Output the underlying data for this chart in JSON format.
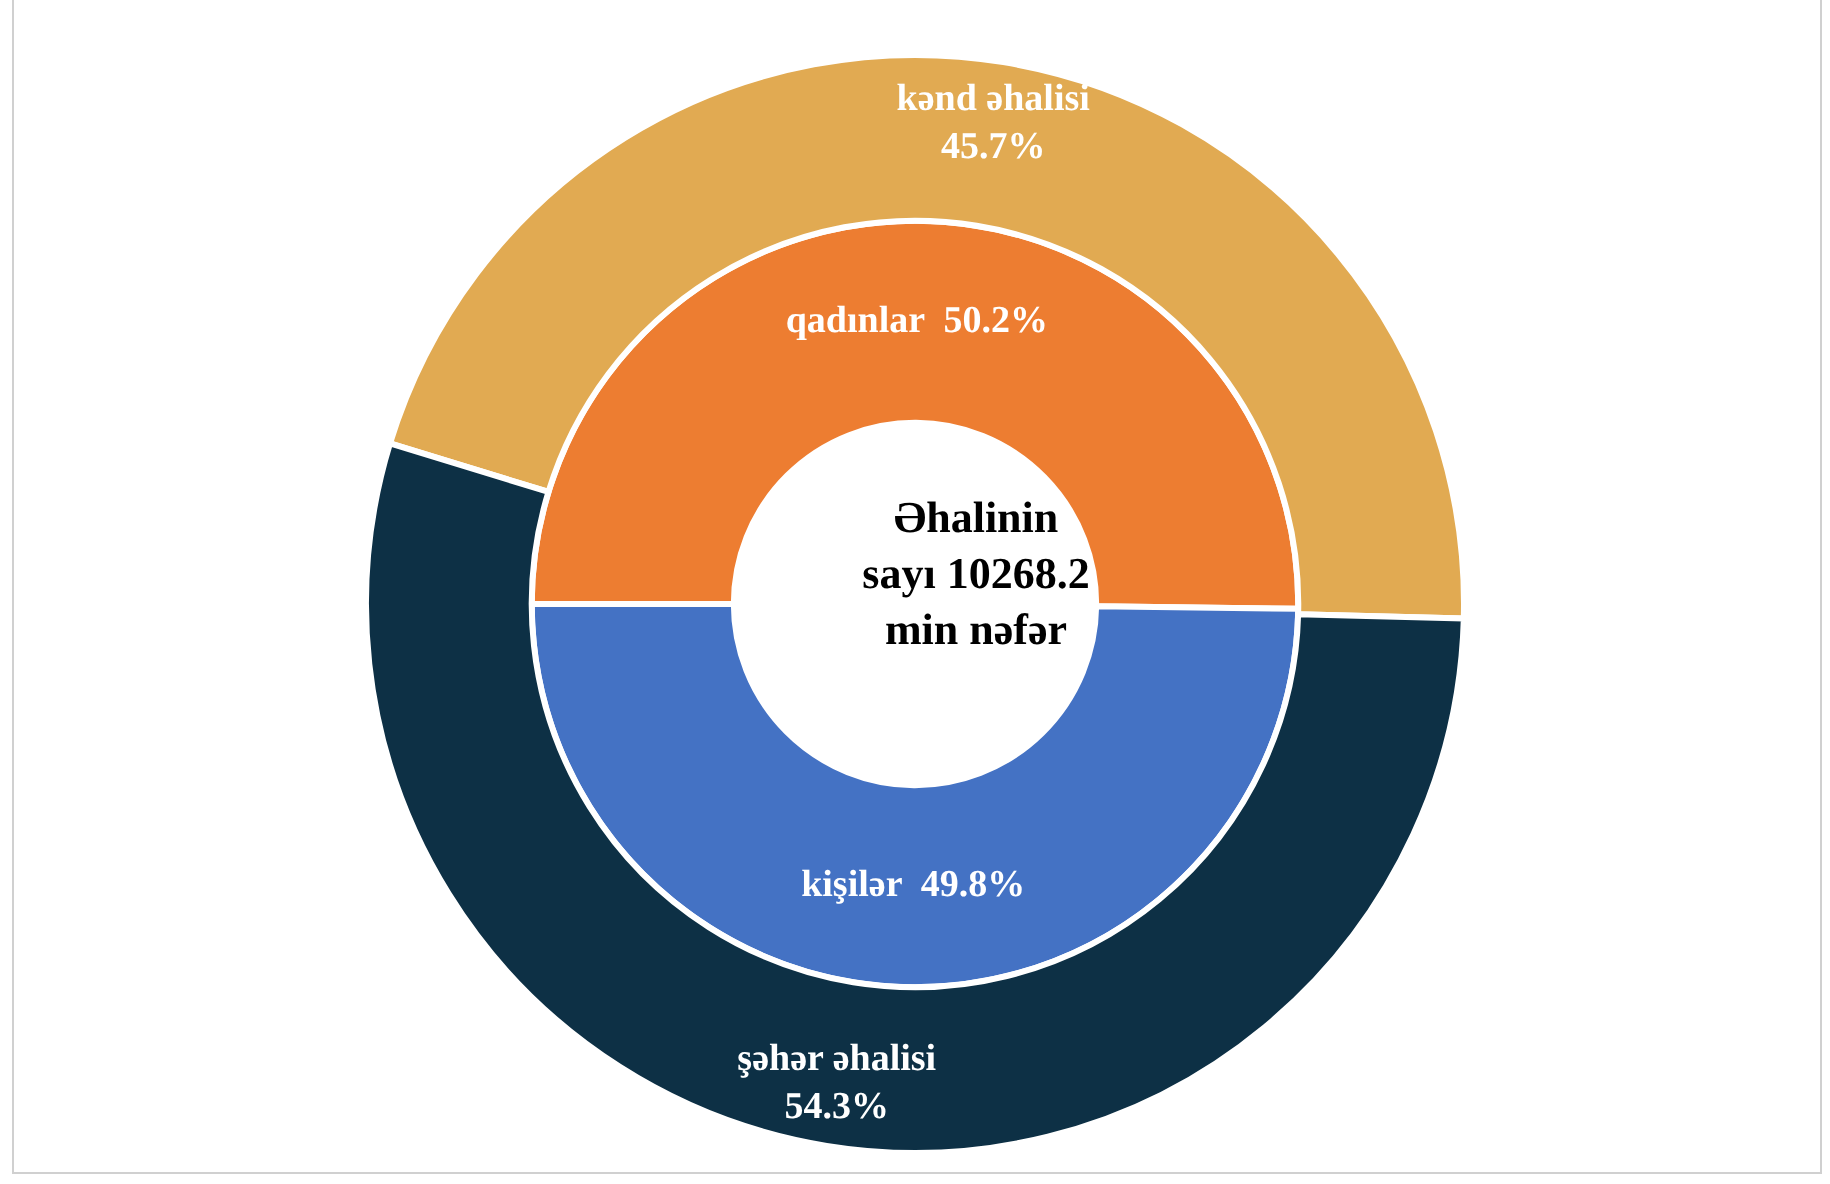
{
  "chart_data": {
    "type": "donut",
    "categories": [
      "kənd əhalisi",
      "şəhər əhalisi",
      "qadınlar",
      "kişilər"
    ],
    "series": [
      {
        "values": [
          45.7,
          54.3,
          null,
          null
        ],
        "colors": [
          "#e1aa52",
          "#0d3045",
          null,
          null
        ],
        "value_labels": [
          "45.7%",
          "54.3%",
          null,
          null
        ]
      },
      {
        "values": [
          null,
          null,
          50.2,
          49.8
        ],
        "colors": [
          null,
          null,
          "#ed7d31",
          "#4472c4"
        ],
        "value_labels": [
          null,
          null,
          "50.2%",
          "49.8%"
        ]
      }
    ],
    "annotations": [
      "Əhalinin sayı 10268.2 min nəfər"
    ],
    "legend": false
  }
}
